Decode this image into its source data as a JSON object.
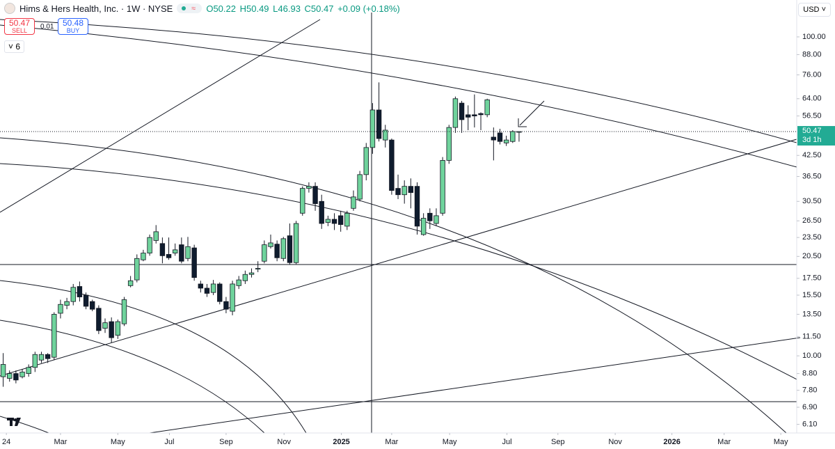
{
  "header": {
    "title": "Hims & Hers Health, Inc. · 1W · NYSE",
    "ohlc": [
      "O50.22",
      "H50.49",
      "L46.93",
      "C50.47",
      "+0.09 (+0.18%)"
    ],
    "sell_price": "50.47",
    "sell": "SELL",
    "spread": "0.01",
    "buy_price": "50.48",
    "buy": "BUY",
    "indicators": "6",
    "currency": "USD",
    "price_label": "50.47",
    "countdown": "3d 1h"
  },
  "chart_data": {
    "type": "candlestick",
    "log_scale": true,
    "up_color": "#6fd39c",
    "down_color": "#0f1c2e",
    "categories": [
      null,
      null,
      null,
      null,
      null,
      null,
      null,
      null,
      null,
      null,
      null,
      null,
      null,
      null,
      null,
      null,
      null,
      null,
      null,
      null,
      null,
      null,
      null,
      null,
      null,
      null,
      null,
      null,
      null,
      null,
      null,
      null,
      null,
      null,
      null,
      null,
      null,
      null,
      null,
      null,
      null,
      null,
      null,
      null,
      null,
      null,
      null,
      null,
      null,
      null,
      null,
      null,
      null,
      null,
      null,
      null,
      null,
      null,
      null,
      null,
      null,
      null,
      null,
      null,
      null,
      null,
      null,
      null,
      null,
      null,
      null,
      null,
      null,
      null,
      null,
      null,
      null,
      null,
      null,
      null,
      null,
      null
    ],
    "open": [
      8.6,
      8.5,
      8.8,
      8.6,
      8.8,
      9.2,
      9.7,
      10.1,
      9.9,
      13.6,
      14.4,
      14.8,
      16.5,
      15.5,
      14.8,
      14.1,
      12.2,
      12.8,
      11.6,
      12.6,
      16.6,
      17.3,
      20.0,
      21.0,
      23.0,
      22.5,
      20.8,
      21.0,
      22.3,
      20.2,
      21.8,
      16.8,
      16.3,
      15.8,
      16.8,
      14.8,
      13.8,
      16.6,
      17.2,
      18.0,
      18.7,
      19.8,
      22.0,
      22.4,
      20.2,
      23.8,
      19.6,
      28.0,
      33.5,
      34.0,
      30.5,
      26.2,
      26.8,
      27.5,
      25.5,
      29.0,
      31.0,
      37.0,
      45.0,
      59.0,
      47.5,
      47.5,
      33.5,
      32.0,
      34.0,
      34.0,
      24.0,
      28.0,
      26.0,
      28.0,
      41.0,
      52.0,
      62.0,
      57.0,
      57.0,
      57.5,
      57.0,
      48.5,
      50.0,
      46.5,
      47.0,
      50.22
    ],
    "high": [
      10.2,
      9.0,
      9.0,
      9.1,
      9.4,
      10.3,
      10.3,
      10.2,
      13.7,
      15.0,
      15.2,
      16.8,
      17.1,
      15.8,
      15.0,
      14.4,
      13.1,
      13.2,
      13.0,
      15.3,
      17.8,
      20.8,
      21.5,
      24.0,
      25.7,
      23.5,
      23.5,
      22.5,
      23.5,
      23.6,
      22.3,
      17.2,
      16.8,
      17.3,
      17.0,
      15.3,
      17.2,
      17.8,
      18.5,
      18.8,
      19.8,
      23.0,
      24.0,
      23.0,
      23.6,
      26.0,
      26.5,
      34.0,
      35.0,
      35.0,
      32.0,
      27.5,
      28.0,
      28.5,
      28.5,
      33.0,
      38.0,
      46.5,
      62.0,
      72.0,
      53.0,
      48.0,
      37.0,
      35.5,
      36.0,
      35.0,
      28.0,
      29.0,
      29.0,
      42.0,
      53.0,
      65.0,
      63.0,
      61.0,
      66.0,
      58.0,
      64.0,
      52.0,
      51.5,
      49.0,
      51.0,
      50.49
    ],
    "low": [
      8.0,
      8.3,
      8.2,
      8.5,
      8.6,
      8.9,
      9.5,
      9.5,
      9.7,
      13.1,
      14.0,
      14.4,
      14.8,
      14.0,
      13.8,
      11.7,
      11.8,
      11.0,
      11.3,
      12.4,
      16.4,
      17.0,
      19.8,
      20.6,
      22.5,
      19.5,
      20.0,
      20.6,
      19.5,
      19.8,
      17.2,
      15.8,
      15.3,
      15.5,
      14.5,
      13.6,
      13.4,
      16.2,
      16.8,
      17.6,
      18.3,
      19.5,
      21.7,
      19.8,
      19.8,
      19.3,
      19.4,
      27.5,
      32.5,
      28.5,
      25.0,
      25.5,
      24.8,
      24.5,
      24.8,
      28.5,
      30.5,
      35.5,
      43.0,
      47.0,
      45.0,
      32.0,
      31.0,
      30.0,
      29.0,
      24.0,
      23.8,
      25.0,
      25.5,
      27.5,
      40.0,
      50.0,
      50.0,
      51.0,
      52.0,
      51.0,
      56.0,
      41.0,
      46.0,
      45.5,
      46.5,
      46.93
    ],
    "close": [
      9.4,
      8.8,
      8.4,
      8.9,
      9.2,
      10.1,
      10.1,
      9.8,
      13.5,
      14.5,
      14.8,
      16.4,
      15.3,
      14.3,
      14.0,
      12.0,
      12.7,
      11.4,
      12.8,
      15.0,
      17.2,
      20.2,
      21.0,
      23.5,
      24.5,
      20.6,
      20.3,
      21.5,
      19.8,
      22.0,
      17.6,
      16.3,
      15.7,
      16.8,
      14.8,
      14.0,
      16.8,
      17.3,
      18.0,
      18.2,
      18.8,
      22.3,
      22.6,
      20.3,
      23.3,
      19.6,
      26.0,
      33.5,
      34.0,
      30.0,
      26.0,
      26.8,
      26.0,
      25.8,
      28.0,
      31.5,
      37.0,
      45.0,
      59.0,
      48.0,
      51.0,
      33.0,
      32.0,
      34.0,
      32.5,
      25.5,
      27.0,
      26.5,
      27.5,
      41.0,
      52.0,
      64.0,
      55.0,
      56.0,
      56.5,
      57.0,
      63.5,
      47.5,
      47.0,
      47.5,
      50.5,
      50.47
    ],
    "xlim": [
      -0.5,
      124.6
    ],
    "xticks": [
      {
        "value": 0.5,
        "label": "24"
      },
      {
        "value": 9,
        "label": "Mar"
      },
      {
        "value": 18,
        "label": "May"
      },
      {
        "value": 26.1,
        "label": "Jul"
      },
      {
        "value": 35,
        "label": "Sep"
      },
      {
        "value": 44.1,
        "label": "Nov"
      },
      {
        "value": 53.1,
        "label": "2025"
      },
      {
        "value": 61,
        "label": "Mar"
      },
      {
        "value": 70.1,
        "label": "May"
      },
      {
        "value": 79.1,
        "label": "Jul"
      },
      {
        "value": 87.1,
        "label": "Sep"
      },
      {
        "value": 96.1,
        "label": "Nov"
      },
      {
        "value": 105,
        "label": "2026"
      },
      {
        "value": 113.2,
        "label": "Mar"
      },
      {
        "value": 122.1,
        "label": "May"
      }
    ],
    "ylim": [
      5.73,
      130.5
    ],
    "yticks": [
      {
        "value": 100,
        "label": "100.00"
      },
      {
        "value": 88,
        "label": "88.00"
      },
      {
        "value": 76,
        "label": "76.00"
      },
      {
        "value": 64,
        "label": "64.00"
      },
      {
        "value": 56.5,
        "label": "56.50"
      },
      {
        "value": 42.5,
        "label": "42.50"
      },
      {
        "value": 36.5,
        "label": "36.50"
      },
      {
        "value": 30.5,
        "label": "30.50"
      },
      {
        "value": 26.5,
        "label": "26.50"
      },
      {
        "value": 23.5,
        "label": "23.50"
      },
      {
        "value": 20.5,
        "label": "20.50"
      },
      {
        "value": 17.5,
        "label": "17.50"
      },
      {
        "value": 15.5,
        "label": "15.50"
      },
      {
        "value": 13.5,
        "label": "13.50"
      },
      {
        "value": 11.5,
        "label": "11.50"
      },
      {
        "value": 10,
        "label": "10.00"
      },
      {
        "value": 8.8,
        "label": "8.80"
      },
      {
        "value": 7.8,
        "label": "7.80"
      },
      {
        "value": 6.9,
        "label": "6.90"
      },
      {
        "value": 6.1,
        "label": "6.10"
      }
    ],
    "grid": false
  }
}
